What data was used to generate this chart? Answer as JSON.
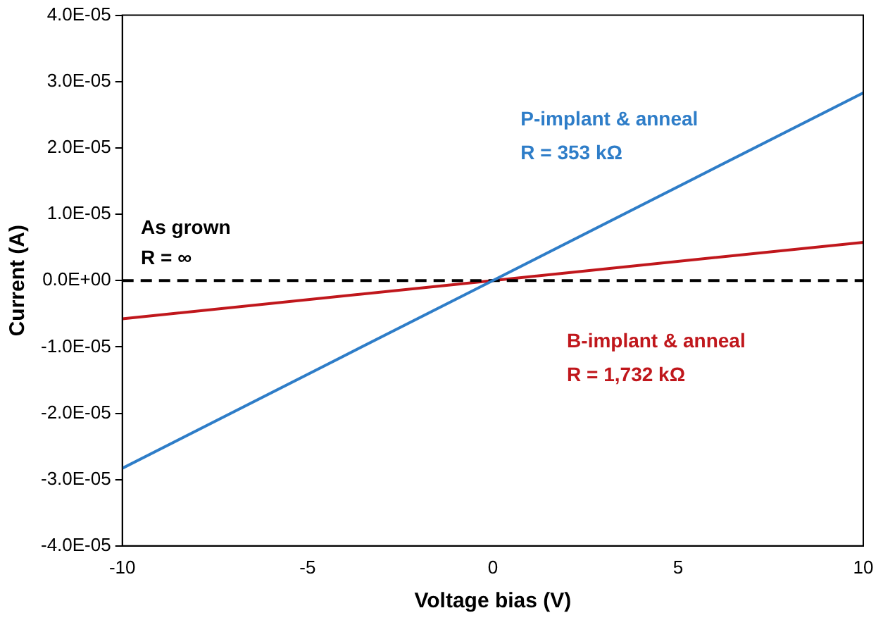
{
  "chart_data": {
    "type": "line",
    "xlabel": "Voltage bias (V)",
    "ylabel": "Current (A)",
    "x": [
      -10,
      0,
      10
    ],
    "series": [
      {
        "name": "P-implant & anneal\nR = 353 kΩ",
        "color": "#2e7dc8",
        "values": [
          -2.83e-05,
          0,
          2.83e-05
        ]
      },
      {
        "name": "As grown\nR = ∞",
        "color": "#000000",
        "line_style": "dashed",
        "values": [
          0,
          0,
          0
        ]
      },
      {
        "name": "B-implant & anneal\nR = 1,732 kΩ",
        "color": "#c0171c",
        "values": [
          -5.77e-06,
          0,
          5.77e-06
        ]
      }
    ],
    "xlim": [
      -10,
      10
    ],
    "xticks": [
      -10,
      -5,
      0,
      5,
      10
    ],
    "ylim": [
      -4e-05,
      4e-05
    ],
    "yticks": [
      {
        "value": -4e-05,
        "label": "-4.0E-05"
      },
      {
        "value": -3e-05,
        "label": "-3.0E-05"
      },
      {
        "value": -2e-05,
        "label": "-2.0E-05"
      },
      {
        "value": -1e-05,
        "label": "-1.0E-05"
      },
      {
        "value": 0,
        "label": "0.0E+00"
      },
      {
        "value": 1e-05,
        "label": "1.0E-05"
      },
      {
        "value": 2e-05,
        "label": "2.0E-05"
      },
      {
        "value": 3e-05,
        "label": "3.0E-05"
      },
      {
        "value": 4e-05,
        "label": "4.0E-05"
      }
    ],
    "grid": false,
    "legend": false,
    "marker": "none"
  }
}
